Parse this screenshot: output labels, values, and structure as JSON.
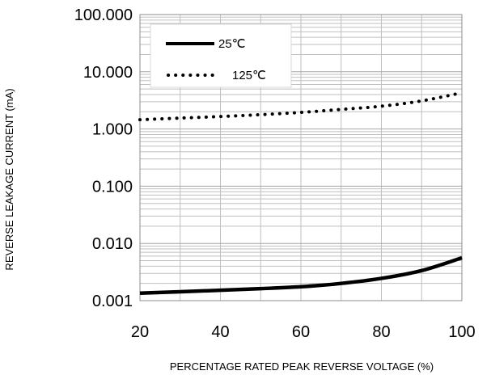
{
  "chart_data": {
    "type": "line",
    "title": "",
    "xlabel": "PERCENTAGE RATED PEAK REVERSE VOLTAGE (%)",
    "ylabel": "REVERSE LEAKAGE CURRENT (mA)",
    "xlim": [
      20,
      100
    ],
    "ylim": [
      0.001,
      100
    ],
    "yscale": "log",
    "grid": true,
    "legend_position": "top-left",
    "x_ticks": [
      20,
      40,
      60,
      80,
      100
    ],
    "x_tick_labels": [
      "20",
      "40",
      "60",
      "80",
      "100"
    ],
    "y_ticks": [
      0.001,
      0.01,
      0.1,
      1,
      10,
      100
    ],
    "y_tick_labels": [
      "0.001",
      "0.010",
      "0.100",
      "1.000",
      "10.000",
      "100.000"
    ],
    "series": [
      {
        "name": "25℃",
        "style": "solid",
        "color": "#000000",
        "x": [
          20,
          30,
          40,
          50,
          60,
          70,
          80,
          90,
          100
        ],
        "y": [
          0.00135,
          0.00143,
          0.00152,
          0.00162,
          0.00175,
          0.002,
          0.00245,
          0.00335,
          0.0056
        ]
      },
      {
        "name": "125℃",
        "style": "dotted",
        "color": "#000000",
        "x": [
          20,
          30,
          40,
          50,
          60,
          70,
          80,
          90,
          100
        ],
        "y": [
          1.45,
          1.55,
          1.65,
          1.78,
          1.95,
          2.2,
          2.5,
          3.1,
          4.3
        ]
      }
    ]
  }
}
